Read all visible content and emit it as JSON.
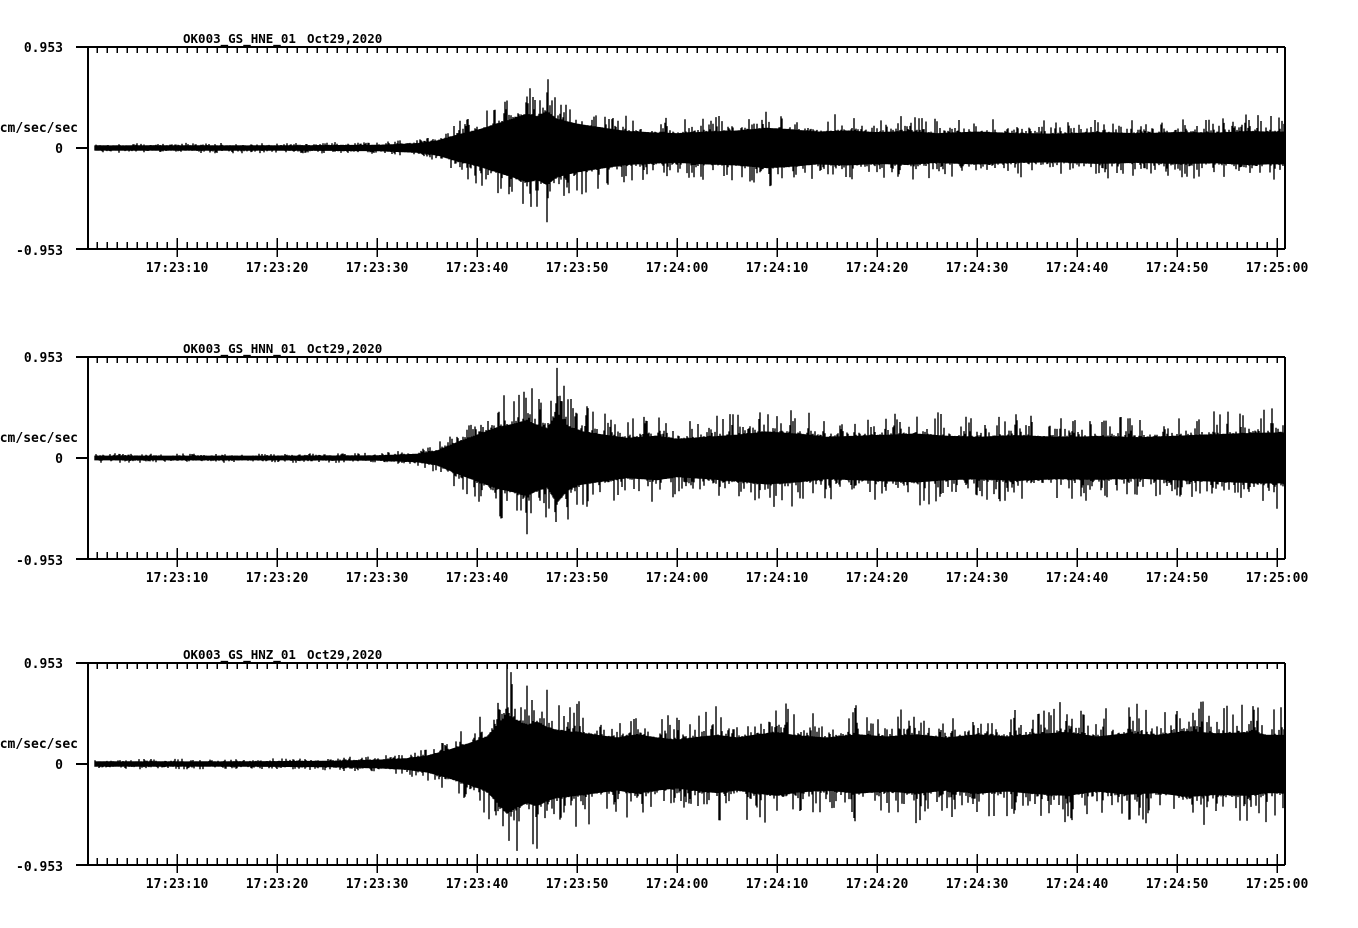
{
  "figure": {
    "background_color": "#ffffff",
    "ink_color": "#000000",
    "station_date": "Oct29,2020"
  },
  "chart_data": [
    {
      "type": "line",
      "title": "OK003_GS_HNE_01",
      "date": "Oct29,2020",
      "channel": "HNE",
      "ylabel": "cm/sec/sec",
      "ylim": [
        -0.953,
        0.953
      ],
      "y_tick_labels": [
        "0.953",
        "0",
        "-0.953"
      ],
      "x_tick_labels": [
        "17:23:10",
        "17:23:20",
        "17:23:30",
        "17:23:40",
        "17:23:50",
        "17:24:00",
        "17:24:10",
        "17:24:20",
        "17:24:30",
        "17:24:40",
        "17:24:50",
        "17:25:00"
      ],
      "envelope_t_sec": [
        1,
        20,
        30,
        34,
        36,
        38,
        40,
        42,
        44,
        45,
        46,
        47,
        48,
        50,
        52,
        55,
        58,
        60,
        63,
        66,
        69,
        71,
        74,
        77,
        80,
        83,
        86,
        90,
        94,
        98,
        102,
        106,
        110,
        114,
        117,
        119
      ],
      "envelope_peak_cm_s2": [
        0.05,
        0.05,
        0.06,
        0.09,
        0.14,
        0.25,
        0.34,
        0.46,
        0.58,
        0.65,
        0.6,
        0.7,
        0.55,
        0.46,
        0.4,
        0.32,
        0.29,
        0.28,
        0.31,
        0.33,
        0.38,
        0.36,
        0.31,
        0.33,
        0.3,
        0.32,
        0.28,
        0.31,
        0.28,
        0.27,
        0.3,
        0.28,
        0.3,
        0.29,
        0.32,
        0.31
      ],
      "noise_floor_cm_s2": 0.05
    },
    {
      "type": "line",
      "title": "OK003_GS_HNN_01",
      "date": "Oct29,2020",
      "channel": "HNN",
      "ylabel": "cm/sec/sec",
      "ylim": [
        -0.953,
        0.953
      ],
      "y_tick_labels": [
        "0.953",
        "0",
        "-0.953"
      ],
      "x_tick_labels": [
        "17:23:10",
        "17:23:20",
        "17:23:30",
        "17:23:40",
        "17:23:50",
        "17:24:00",
        "17:24:10",
        "17:24:20",
        "17:24:30",
        "17:24:40",
        "17:24:50",
        "17:25:00"
      ],
      "envelope_t_sec": [
        1,
        20,
        30,
        34,
        36,
        38,
        40,
        42,
        44,
        45,
        46,
        47,
        48,
        49,
        50,
        52,
        55,
        58,
        60,
        63,
        66,
        69,
        72,
        75,
        78,
        81,
        84,
        87,
        90,
        94,
        98,
        102,
        106,
        110,
        114,
        117,
        119
      ],
      "envelope_peak_cm_s2": [
        0.045,
        0.045,
        0.05,
        0.08,
        0.14,
        0.3,
        0.44,
        0.58,
        0.66,
        0.72,
        0.62,
        0.56,
        0.85,
        0.62,
        0.52,
        0.46,
        0.38,
        0.42,
        0.36,
        0.4,
        0.44,
        0.5,
        0.46,
        0.4,
        0.42,
        0.44,
        0.46,
        0.42,
        0.4,
        0.43,
        0.4,
        0.41,
        0.39,
        0.42,
        0.45,
        0.47,
        0.48
      ],
      "noise_floor_cm_s2": 0.045
    },
    {
      "type": "line",
      "title": "OK003_GS_HNZ_01",
      "date": "Oct29,2020",
      "channel": "HNZ",
      "ylabel": "cm/sec/sec",
      "ylim": [
        -0.953,
        0.953
      ],
      "y_tick_labels": [
        "0.953",
        "0",
        "-0.953"
      ],
      "x_tick_labels": [
        "17:23:10",
        "17:23:20",
        "17:23:30",
        "17:23:40",
        "17:23:50",
        "17:24:00",
        "17:24:10",
        "17:24:20",
        "17:24:30",
        "17:24:40",
        "17:24:50",
        "17:25:00"
      ],
      "envelope_t_sec": [
        1,
        15,
        25,
        30,
        33,
        35,
        37,
        39,
        41,
        43,
        44,
        45,
        46,
        47,
        48,
        50,
        52,
        54,
        56,
        58,
        60,
        62,
        64,
        66,
        68,
        70,
        72,
        75,
        78,
        81,
        84,
        87,
        90,
        93,
        96,
        99,
        102,
        105,
        108,
        111,
        114,
        117,
        119
      ],
      "envelope_peak_cm_s2": [
        0.05,
        0.05,
        0.06,
        0.08,
        0.11,
        0.16,
        0.26,
        0.38,
        0.52,
        0.94,
        0.82,
        0.74,
        0.8,
        0.7,
        0.64,
        0.6,
        0.55,
        0.5,
        0.56,
        0.5,
        0.46,
        0.51,
        0.55,
        0.5,
        0.56,
        0.6,
        0.54,
        0.5,
        0.56,
        0.52,
        0.56,
        0.5,
        0.56,
        0.52,
        0.57,
        0.6,
        0.52,
        0.58,
        0.55,
        0.62,
        0.58,
        0.6,
        0.55
      ],
      "noise_floor_cm_s2": 0.05
    }
  ]
}
